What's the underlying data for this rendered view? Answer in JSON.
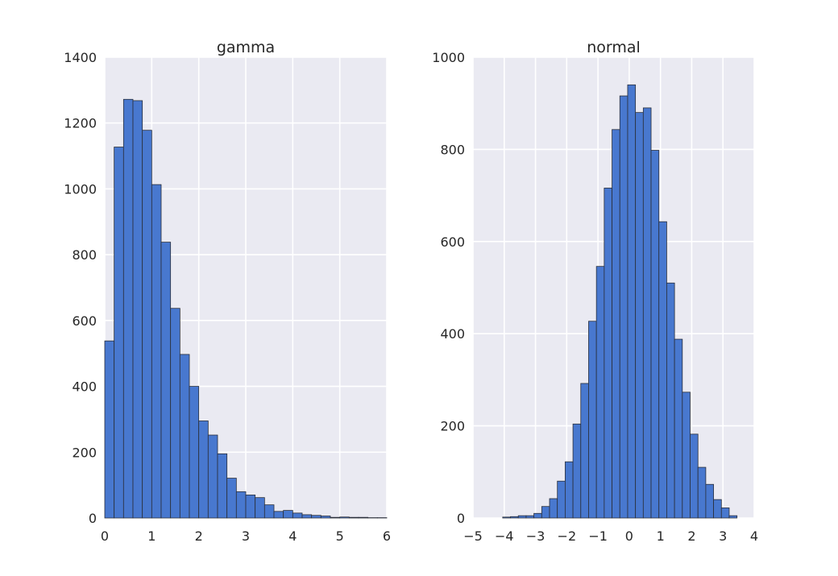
{
  "chart_data": [
    {
      "type": "bar",
      "title": "gamma",
      "xlabel": "",
      "ylabel": "",
      "xlim": [
        0,
        6
      ],
      "ylim": [
        0,
        1400
      ],
      "xticks": [
        "0",
        "1",
        "2",
        "3",
        "4",
        "5",
        "6"
      ],
      "yticks": [
        "0",
        "200",
        "400",
        "600",
        "800",
        "1000",
        "1200",
        "1400"
      ],
      "grid": true,
      "bin_start": 0.0,
      "bin_width": 0.2,
      "values": [
        538,
        1127,
        1272,
        1268,
        1178,
        1013,
        838,
        637,
        497,
        400,
        295,
        252,
        195,
        121,
        80,
        70,
        62,
        40,
        20,
        23,
        15,
        10,
        8,
        6,
        2,
        3,
        2,
        2,
        1,
        1
      ]
    },
    {
      "type": "bar",
      "title": "normal",
      "xlabel": "",
      "ylabel": "",
      "xlim": [
        -5,
        4
      ],
      "ylim": [
        0,
        1000
      ],
      "xticks": [
        "−5",
        "−4",
        "−3",
        "−2",
        "−1",
        "0",
        "1",
        "2",
        "3",
        "4"
      ],
      "yticks": [
        "0",
        "200",
        "400",
        "600",
        "800",
        "1000"
      ],
      "grid": true,
      "bin_start": -4.05,
      "bin_width": 0.25,
      "values": [
        2,
        3,
        5,
        5,
        10,
        25,
        42,
        80,
        122,
        204,
        292,
        427,
        546,
        716,
        843,
        916,
        940,
        880,
        890,
        798,
        643,
        510,
        388,
        273,
        182,
        110,
        73,
        40,
        22,
        5
      ]
    }
  ]
}
